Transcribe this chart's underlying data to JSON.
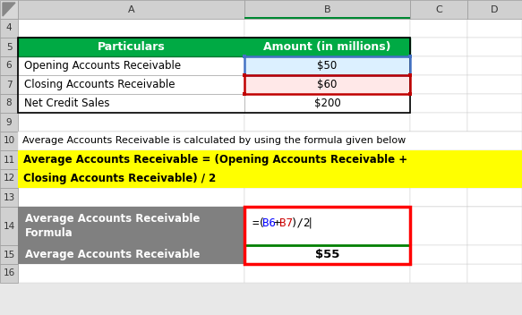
{
  "fig_width": 5.83,
  "fig_height": 3.52,
  "bg_color": "#E8E8E8",
  "header_col_a": "Particulars",
  "header_col_b": "Amount (in millions)",
  "header_bg": "#00AA44",
  "header_text_color": "#FFFFFF",
  "rows_data": [
    {
      "row": "6",
      "col_a": "Opening Accounts Receivable",
      "col_b": "$50",
      "bg_b": "#DCF0FF"
    },
    {
      "row": "7",
      "col_a": "Closing Accounts Receivable",
      "col_b": "$60",
      "bg_b": "#FFE8E8"
    },
    {
      "row": "8",
      "col_a": "Net Credit Sales",
      "col_b": "$200",
      "bg_b": "#FFFFFF"
    }
  ],
  "formula_text_line1": "Average Accounts Receivable = (Opening Accounts Receivable +",
  "formula_text_line2": "Closing Accounts Receivable) / 2",
  "formula_bg": "#FFFF00",
  "info_text": "Average Accounts Receivable is calculated by using the formula given below",
  "bottom_label_a": "Average Accounts Receivable\nFormula",
  "bottom_label_bg": "#808080",
  "bottom_label_text": "#FFFFFF",
  "bottom_formula_b6_color": "#0000FF",
  "bottom_formula_b7_color": "#CC0000",
  "bottom_formula_other_color": "#000000",
  "bottom_result_label": "Average Accounts Receivable",
  "bottom_result_bg": "#808080",
  "bottom_result_text_color": "#FFFFFF",
  "bottom_result_value": "$55",
  "red_border_color": "#FF0000",
  "blue_border_color": "#4472C4",
  "dark_red_border": "#C00000",
  "green_line_color": "#008000",
  "col_header_bg": "#D0D0D0",
  "col_b_header_bg": "#D0D0D0",
  "row_num_bg": "#D0D0D0",
  "grid_color": "#AAAAAA",
  "white": "#FFFFFF"
}
